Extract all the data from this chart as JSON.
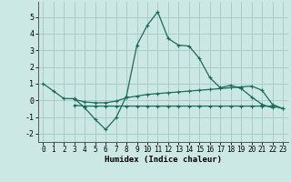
{
  "xlabel": "Humidex (Indice chaleur)",
  "background_color": "#cce8e4",
  "grid_color": "#aaccc8",
  "line_color": "#1a6b5a",
  "x_values": [
    0,
    1,
    2,
    3,
    4,
    5,
    6,
    7,
    8,
    9,
    10,
    11,
    12,
    13,
    14,
    15,
    16,
    17,
    18,
    19,
    20,
    21,
    22,
    23
  ],
  "line1": [
    1.0,
    0.55,
    0.1,
    0.1,
    -0.45,
    -1.15,
    -1.75,
    -1.05,
    0.25,
    3.3,
    4.5,
    5.3,
    3.7,
    3.3,
    3.25,
    2.5,
    1.35,
    0.75,
    0.9,
    0.7,
    0.2,
    -0.25,
    -0.45,
    null
  ],
  "line2": [
    null,
    null,
    null,
    0.05,
    -0.1,
    -0.15,
    -0.15,
    -0.05,
    0.15,
    0.25,
    0.35,
    0.4,
    0.45,
    0.5,
    0.55,
    0.6,
    0.65,
    0.7,
    0.75,
    0.8,
    0.85,
    0.6,
    -0.25,
    -0.5
  ],
  "line3": [
    null,
    null,
    null,
    -0.3,
    -0.35,
    -0.35,
    -0.35,
    -0.35,
    -0.35,
    -0.35,
    -0.35,
    -0.35,
    -0.35,
    -0.35,
    -0.35,
    -0.35,
    -0.35,
    -0.35,
    -0.35,
    -0.35,
    -0.35,
    -0.35,
    -0.35,
    -0.5
  ],
  "ylim": [
    -2.5,
    5.9
  ],
  "xlim": [
    -0.5,
    23.5
  ],
  "yticks": [
    -2,
    -1,
    0,
    1,
    2,
    3,
    4,
    5
  ],
  "xticks": [
    0,
    1,
    2,
    3,
    4,
    5,
    6,
    7,
    8,
    9,
    10,
    11,
    12,
    13,
    14,
    15,
    16,
    17,
    18,
    19,
    20,
    21,
    22,
    23
  ]
}
